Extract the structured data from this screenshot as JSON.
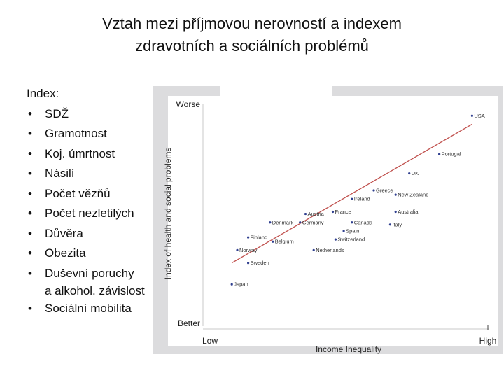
{
  "title_line1": "Vztah mezi příjmovou nerovností a indexem",
  "title_line2": "zdravotních a sociálních problémů",
  "index_heading": "Index:",
  "bullets": [
    {
      "text": "SDŽ"
    },
    {
      "text": "Gramotnost"
    },
    {
      "text": "Koj. úmrtnost"
    },
    {
      "text": "Násilí"
    },
    {
      "text": "Počet vězňů"
    },
    {
      "text": "Počet nezletilých"
    },
    {
      "text": "Důvěra"
    },
    {
      "text": "Obezita"
    },
    {
      "text": "Duševní poruchy",
      "text2": "a alkohol. závislost"
    },
    {
      "text": "Sociální mobilita"
    }
  ],
  "chart_data": {
    "type": "scatter",
    "ylabel": "Index of health and social problems",
    "xlabel": "Income Inequality",
    "x_tick_labels": [
      "Low",
      "High"
    ],
    "y_tick_labels": [
      "Worse",
      "Better"
    ],
    "xlim": [
      0,
      1
    ],
    "ylim": [
      0,
      1
    ],
    "points": [
      {
        "label": "USA",
        "x": 0.96,
        "y": 0.95
      },
      {
        "label": "Portugal",
        "x": 0.84,
        "y": 0.77
      },
      {
        "label": "UK",
        "x": 0.73,
        "y": 0.68
      },
      {
        "label": "Greece",
        "x": 0.6,
        "y": 0.6
      },
      {
        "label": "Ireland",
        "x": 0.52,
        "y": 0.56
      },
      {
        "label": "New Zealand",
        "x": 0.68,
        "y": 0.58
      },
      {
        "label": "Australia",
        "x": 0.68,
        "y": 0.5
      },
      {
        "label": "Austria",
        "x": 0.35,
        "y": 0.49
      },
      {
        "label": "France",
        "x": 0.45,
        "y": 0.5
      },
      {
        "label": "Denmark",
        "x": 0.22,
        "y": 0.45
      },
      {
        "label": "Germany",
        "x": 0.33,
        "y": 0.45
      },
      {
        "label": "Canada",
        "x": 0.52,
        "y": 0.45
      },
      {
        "label": "Italy",
        "x": 0.66,
        "y": 0.44
      },
      {
        "label": "Spain",
        "x": 0.49,
        "y": 0.41
      },
      {
        "label": "Belgium",
        "x": 0.23,
        "y": 0.36
      },
      {
        "label": "Finland",
        "x": 0.14,
        "y": 0.38
      },
      {
        "label": "Switzerland",
        "x": 0.46,
        "y": 0.37
      },
      {
        "label": "Netherlands",
        "x": 0.38,
        "y": 0.32
      },
      {
        "label": "Norway",
        "x": 0.1,
        "y": 0.32
      },
      {
        "label": "Sweden",
        "x": 0.14,
        "y": 0.26
      },
      {
        "label": "Japan",
        "x": 0.08,
        "y": 0.16
      }
    ],
    "trend": {
      "x": [
        0.08,
        0.96
      ],
      "y": [
        0.26,
        0.91
      ],
      "color": "#c0504d"
    },
    "point_color": "#2f3f8f"
  }
}
